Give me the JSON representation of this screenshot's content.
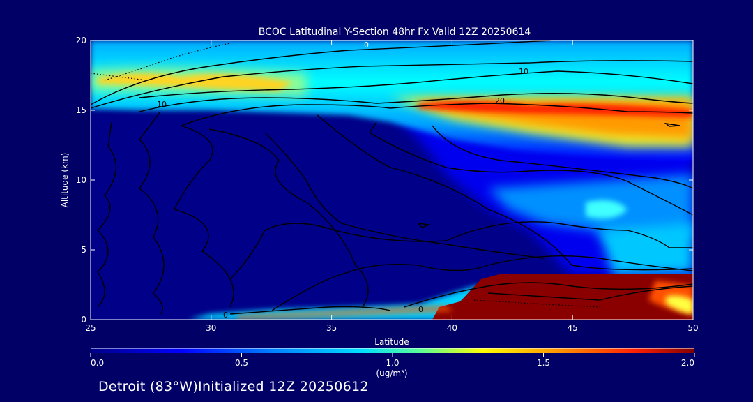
{
  "chart_data": {
    "type": "heatmap",
    "title": "BCOC Latitudinal Y-Section 48hr  Fx Valid 12Z 20250614",
    "xlabel": "Latitude",
    "ylabel": "Altitude (km)",
    "xlim": [
      25,
      50
    ],
    "ylim": [
      0,
      20
    ],
    "x_ticks": [
      "25",
      "30",
      "35",
      "40",
      "45",
      "50"
    ],
    "y_ticks": [
      "0",
      "5",
      "10",
      "15",
      "20"
    ],
    "colorbar": {
      "min": 0.0,
      "max": 2.0,
      "tick_labels": [
        "0.0",
        "0.5",
        "1.0",
        "1.5",
        "2.0"
      ],
      "units": "(ug/m³)",
      "colors": [
        "#000088",
        "#0000ff",
        "#00a0ff",
        "#00ffff",
        "#c8ff40",
        "#ffff00",
        "#ff8000",
        "#ff2000",
        "#800000"
      ]
    },
    "contour_labels": [
      "0",
      "10",
      "20",
      "10",
      "0",
      "0"
    ],
    "concentration_field": [
      {
        "lat": [
          25,
          50
        ],
        "alt": [
          15.2,
          20
        ],
        "value": 0.9
      },
      {
        "lat": [
          26,
          30
        ],
        "alt": [
          16.5,
          17.8
        ],
        "value": 1.6
      },
      {
        "lat": [
          30,
          34
        ],
        "alt": [
          16,
          17.5
        ],
        "value": 1.5
      },
      {
        "lat": [
          38.5,
          50
        ],
        "alt": [
          13.5,
          15.7
        ],
        "value": 1.8
      },
      {
        "lat": [
          44,
          50
        ],
        "alt": [
          12,
          14.5
        ],
        "value": 1.5
      },
      {
        "lat": [
          39,
          50
        ],
        "alt": [
          8,
          12
        ],
        "value": 0.6
      },
      {
        "lat": [
          41.5,
          50
        ],
        "alt": [
          0,
          3.2
        ],
        "value": 2.0
      },
      {
        "lat": [
          28,
          41
        ],
        "alt": [
          0,
          0.6
        ],
        "value": 1.4
      }
    ]
  },
  "footer": "Detroit (83°W)Initialized 12Z 20250612"
}
